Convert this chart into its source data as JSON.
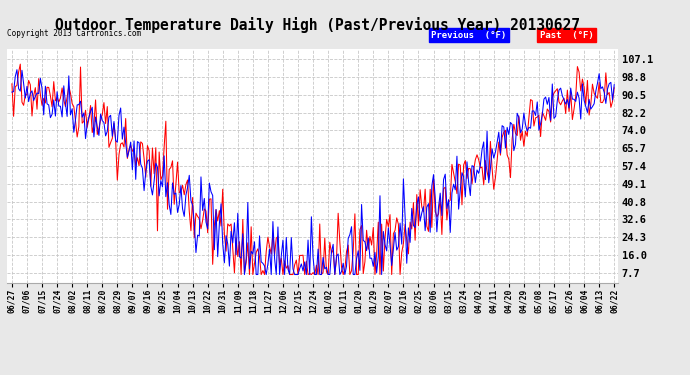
{
  "title": "Outdoor Temperature Daily High (Past/Previous Year) 20130627",
  "copyright": "Copyright 2013 Cartronics.com",
  "legend_prev_label": "Previous  (°F)",
  "legend_past_label": "Past  (°F)",
  "y_ticks": [
    7.7,
    16.0,
    24.3,
    32.6,
    40.8,
    49.1,
    57.4,
    65.7,
    74.0,
    82.2,
    90.5,
    98.8,
    107.1
  ],
  "ylim": [
    3.0,
    112.0
  ],
  "background_color": "#e8e8e8",
  "plot_bg_color": "#ffffff",
  "grid_color": "#c8c8c8",
  "title_fontsize": 10.5,
  "x_labels": [
    "06/27",
    "07/06",
    "07/15",
    "07/24",
    "08/02",
    "08/11",
    "08/20",
    "08/29",
    "09/07",
    "09/16",
    "09/25",
    "10/04",
    "10/13",
    "10/22",
    "10/31",
    "11/09",
    "11/18",
    "11/27",
    "12/06",
    "12/15",
    "12/24",
    "01/02",
    "01/11",
    "01/20",
    "01/29",
    "02/07",
    "02/16",
    "02/25",
    "03/06",
    "03/15",
    "03/24",
    "04/02",
    "04/11",
    "04/20",
    "04/29",
    "05/08",
    "05/17",
    "05/26",
    "06/04",
    "06/13",
    "06/22"
  ]
}
